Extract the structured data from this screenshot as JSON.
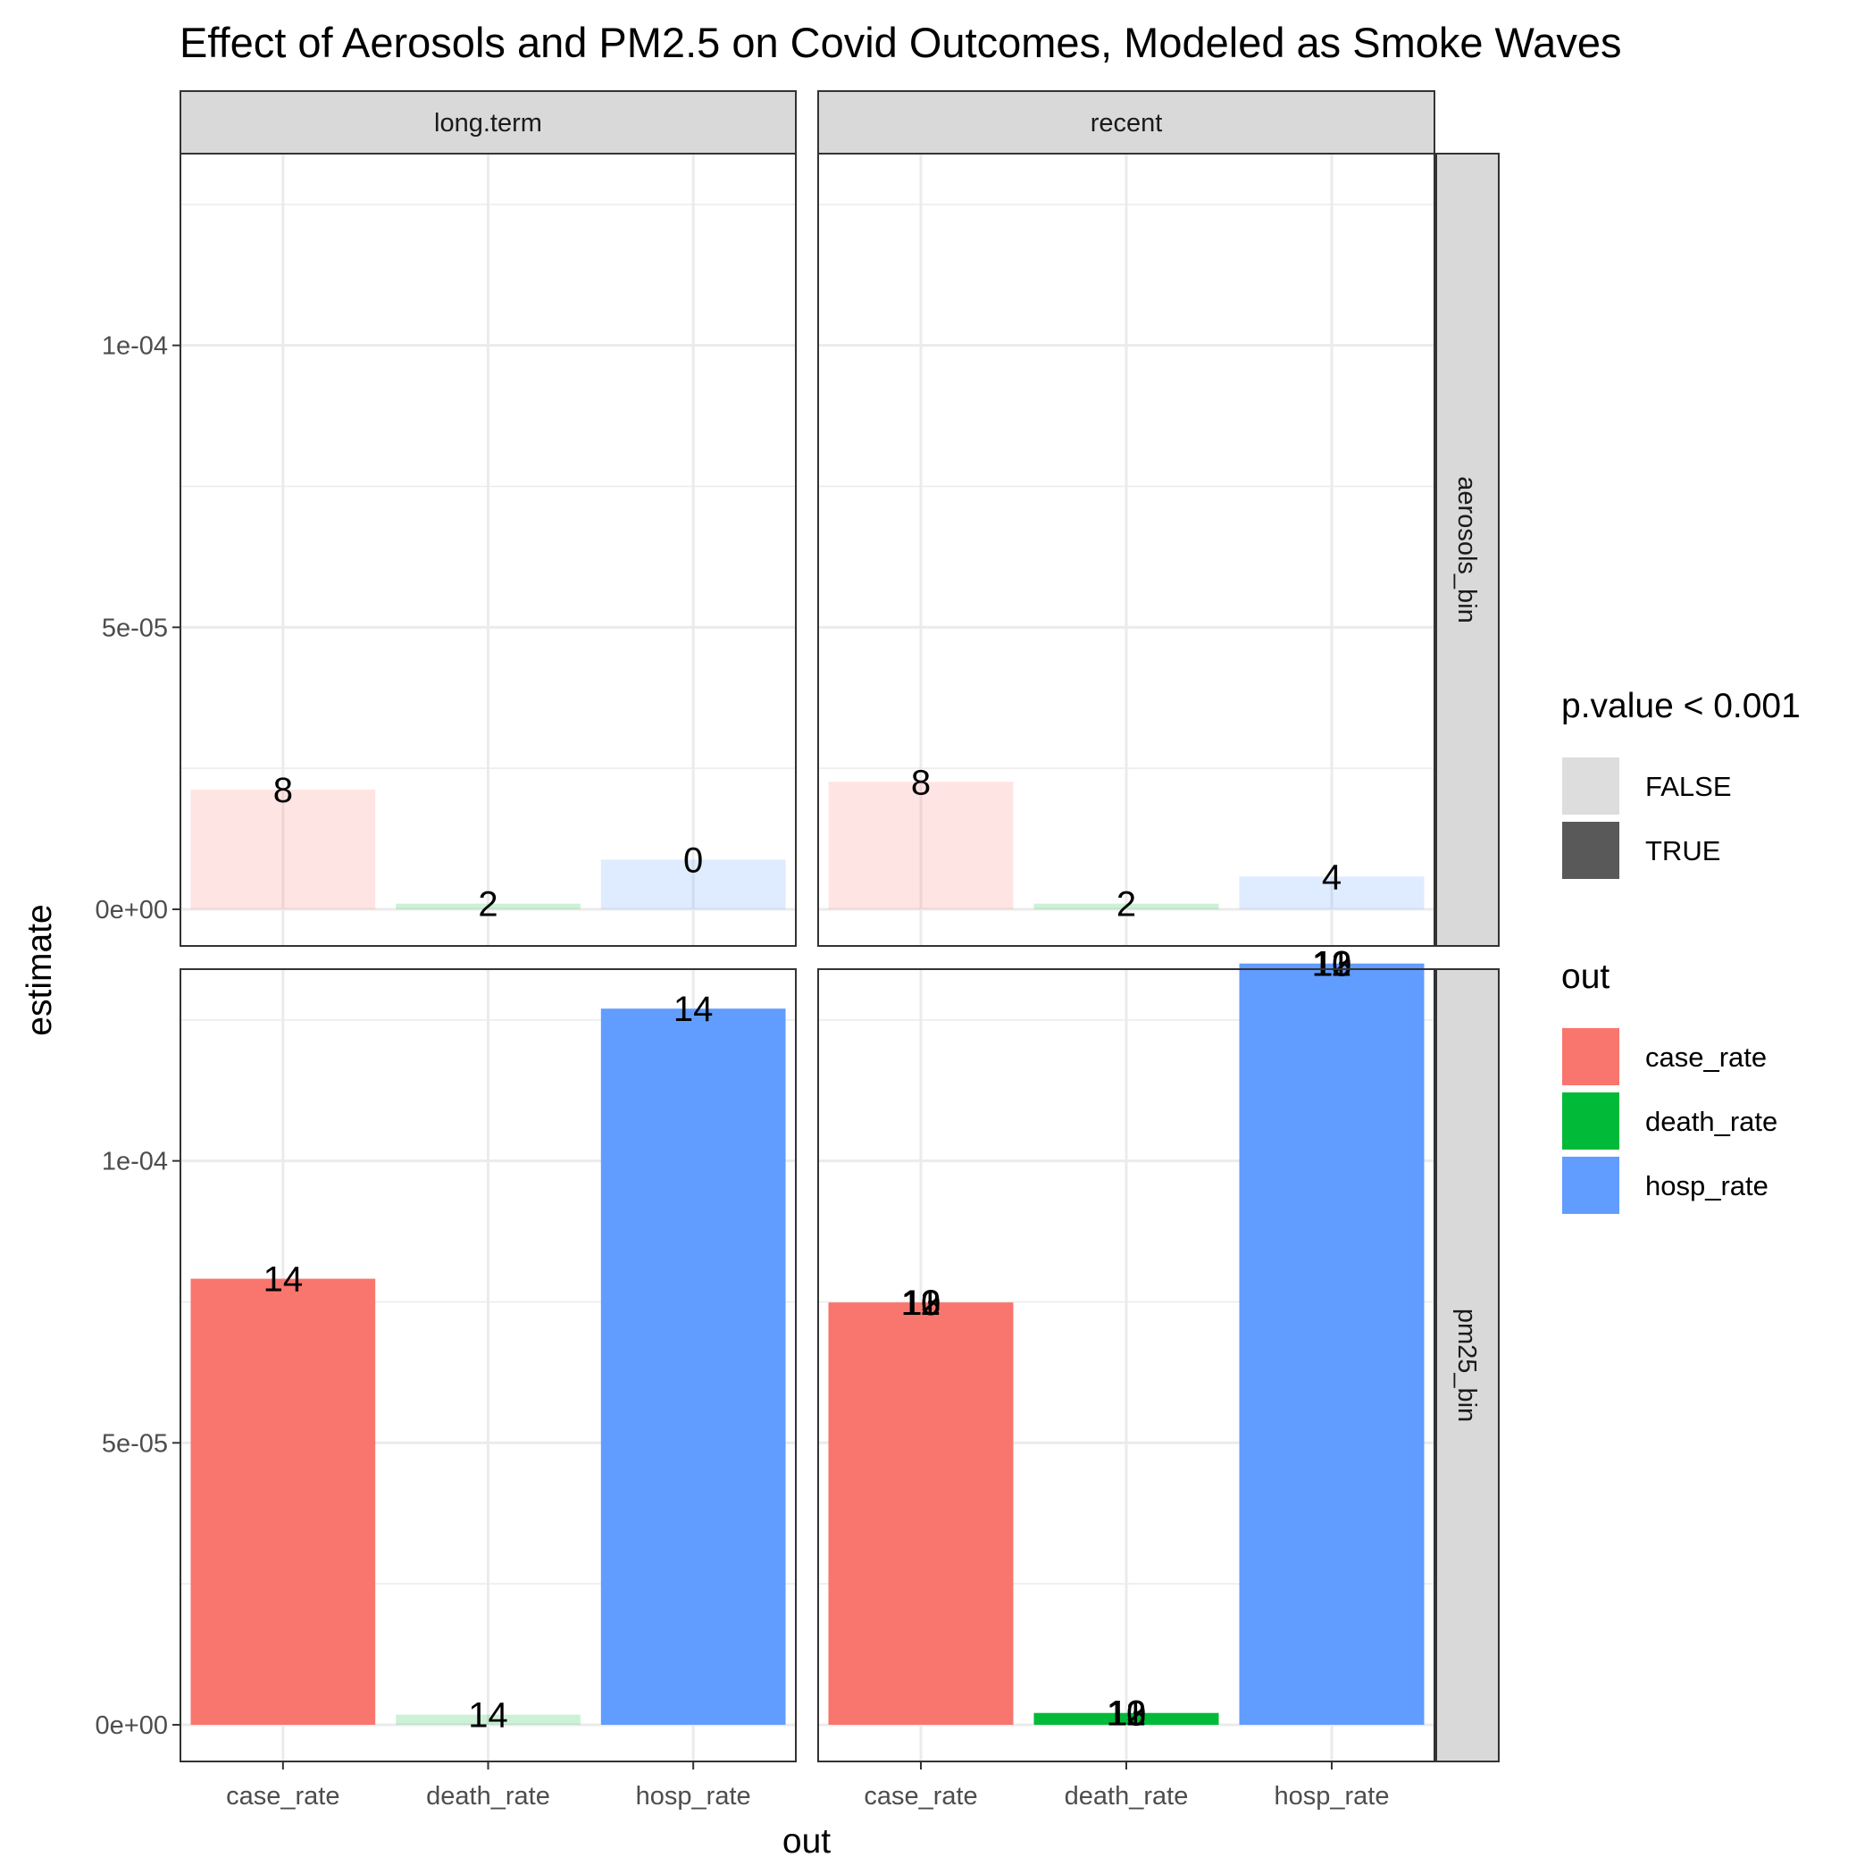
{
  "chart_data": {
    "type": "bar",
    "title": "Effect of Aerosols and PM2.5 on Covid Outcomes, Modeled as Smoke Waves",
    "xlabel": "out",
    "ylabel": "estimate",
    "categories": [
      "case_rate",
      "death_rate",
      "hosp_rate"
    ],
    "facet_columns": [
      "long.term",
      "recent"
    ],
    "facet_rows": [
      "aerosols_bin",
      "pm25_bin"
    ],
    "y_ticks": [
      "0e+00",
      "5e-05",
      "1e-04"
    ],
    "y_tick_values": [
      0,
      5e-05,
      0.0001
    ],
    "ylim": [
      -6.5e-06,
      0.000134
    ],
    "grid": true,
    "legend_position": "right",
    "colors": {
      "case_rate": "#F8766D",
      "death_rate": "#00BA38",
      "hosp_rate": "#619CFF"
    },
    "legends": [
      {
        "title": "p.value < 0.001",
        "kind": "alpha",
        "items": [
          {
            "label": "FALSE",
            "color": "#DDDDDD"
          },
          {
            "label": "TRUE",
            "color": "#595959"
          }
        ]
      },
      {
        "title": "out",
        "kind": "fill",
        "items": [
          {
            "label": "case_rate",
            "color": "#F8766D"
          },
          {
            "label": "death_rate",
            "color": "#00BA38"
          },
          {
            "label": "hosp_rate",
            "color": "#619CFF"
          }
        ]
      }
    ],
    "panels": [
      {
        "row": "aerosols_bin",
        "col": "long.term",
        "bars": [
          {
            "category": "case_rate",
            "value": 2.12e-05,
            "significant": false,
            "label": "8",
            "labels": []
          },
          {
            "category": "death_rate",
            "value": 1e-06,
            "significant": false,
            "label": "2",
            "labels": []
          },
          {
            "category": "hosp_rate",
            "value": 8.8e-06,
            "significant": false,
            "label": "0",
            "labels": []
          }
        ]
      },
      {
        "row": "aerosols_bin",
        "col": "recent",
        "bars": [
          {
            "category": "case_rate",
            "value": 2.26e-05,
            "significant": false,
            "label": "8",
            "labels": []
          },
          {
            "category": "death_rate",
            "value": 1e-06,
            "significant": false,
            "label": "2",
            "labels": []
          },
          {
            "category": "hosp_rate",
            "value": 5.8e-06,
            "significant": false,
            "label": "4",
            "labels": []
          }
        ]
      },
      {
        "row": "pm25_bin",
        "col": "long.term",
        "bars": [
          {
            "category": "case_rate",
            "value": 7.91e-05,
            "significant": true,
            "label": "14",
            "labels": []
          },
          {
            "category": "death_rate",
            "value": 1.8e-06,
            "significant": false,
            "label": "14",
            "labels": []
          },
          {
            "category": "hosp_rate",
            "value": 0.000127,
            "significant": true,
            "label": "14",
            "labels": []
          }
        ]
      },
      {
        "row": "pm25_bin",
        "col": "recent",
        "bars": [
          {
            "category": "case_rate",
            "value": 7.49e-05,
            "significant": true,
            "label": "",
            "labels": [
              "10",
              "11",
              "12",
              "13"
            ]
          },
          {
            "category": "death_rate",
            "value": 2.1e-06,
            "significant": true,
            "label": "",
            "labels": [
              "10",
              "11",
              "12",
              "13"
            ]
          },
          {
            "category": "hosp_rate",
            "value": 0.000135,
            "significant": true,
            "label": "",
            "labels": [
              "10",
              "11",
              "12",
              "13"
            ]
          }
        ]
      }
    ]
  }
}
